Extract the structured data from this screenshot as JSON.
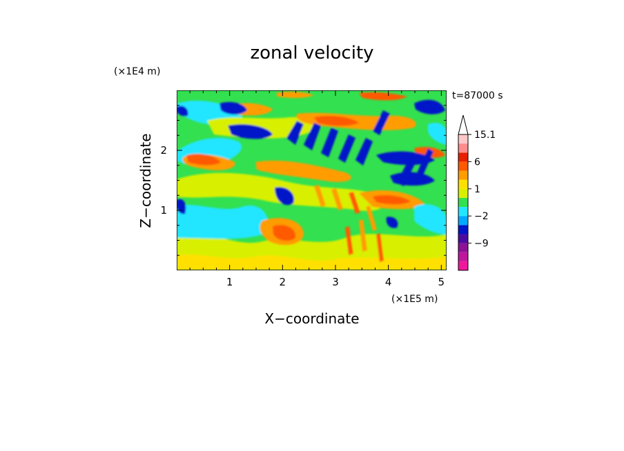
{
  "chart_data": {
    "type": "heatmap",
    "title": "zonal velocity",
    "xlabel": "X−coordinate",
    "ylabel": "Z−coordinate",
    "x_scale_label": "(×1E5 m)",
    "y_scale_label": "(×1E4 m)",
    "time_label": "t=87000 s",
    "xlim": [
      0,
      5.1
    ],
    "ylim": [
      0,
      3.0
    ],
    "x_ticks": [
      1,
      2,
      3,
      4,
      5
    ],
    "x_tick_labels": [
      "1",
      "2",
      "3",
      "4",
      "5"
    ],
    "y_ticks": [
      1,
      2
    ],
    "y_tick_labels": [
      "1",
      "2"
    ],
    "colorbar": {
      "levels": [
        -15,
        -12,
        -9,
        -6,
        -4,
        -2,
        -1,
        0,
        1,
        2,
        4,
        6,
        9,
        12,
        15.1
      ],
      "colors": [
        "#f0189c",
        "#c0169c",
        "#8c1296",
        "#4c0ca0",
        "#0014c8",
        "#00a8ff",
        "#22e6ff",
        "#32e050",
        "#d8f000",
        "#ffe000",
        "#ff9c00",
        "#ff5a00",
        "#e62000",
        "#ff8c8c",
        "#ffc8c8"
      ],
      "tick_values": [
        15.1,
        6,
        1,
        -2,
        -9
      ],
      "tick_labels": [
        "15.1",
        "6",
        "1",
        "−2",
        "−9"
      ],
      "extend": "max"
    },
    "field_description_features": [
      {
        "x": 3.7,
        "z": 2.3,
        "value": -6
      },
      {
        "x": 2.5,
        "z": 2.3,
        "value": 6
      },
      {
        "x": 1.0,
        "z": 2.5,
        "value": -6
      },
      {
        "x": 1.5,
        "z": 1.9,
        "value": 6
      },
      {
        "x": 2.2,
        "z": 1.1,
        "value": -4
      },
      {
        "x": 4.3,
        "z": 1.3,
        "value": 6
      },
      {
        "x": 3.4,
        "z": 0.6,
        "value": 9
      }
    ]
  }
}
